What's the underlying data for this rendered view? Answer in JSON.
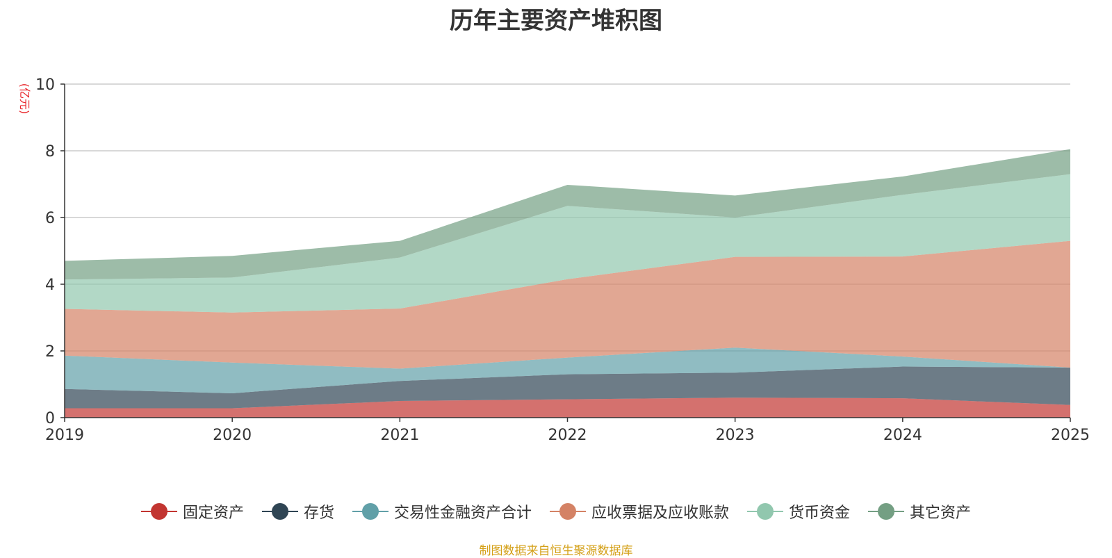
{
  "chart_data": {
    "type": "area",
    "stacked": true,
    "title": "历年主要资产堆积图",
    "ylabel": "(亿元)",
    "xlabel": "",
    "categories": [
      "2019",
      "2020",
      "2021",
      "2022",
      "2023",
      "2024",
      "2025"
    ],
    "ylim": [
      0,
      10
    ],
    "yticks": [
      0,
      2,
      4,
      6,
      8,
      10
    ],
    "grid": true,
    "legend_position": "bottom",
    "series": [
      {
        "name": "固定资产",
        "color": "#c23531",
        "values": [
          0.28,
          0.28,
          0.5,
          0.55,
          0.6,
          0.58,
          0.38
        ]
      },
      {
        "name": "存货",
        "color": "#2f4554",
        "values": [
          0.58,
          0.45,
          0.6,
          0.75,
          0.75,
          0.95,
          1.12
        ]
      },
      {
        "name": "交易性金融资产合计",
        "color": "#61a0a8",
        "values": [
          1.0,
          0.92,
          0.37,
          0.5,
          0.75,
          0.3,
          0.0
        ]
      },
      {
        "name": "应收票据及应收账款",
        "color": "#d48265",
        "values": [
          1.4,
          1.5,
          1.8,
          2.35,
          2.72,
          3.0,
          3.8
        ]
      },
      {
        "name": "货币资金",
        "color": "#91c7ae",
        "values": [
          0.88,
          1.05,
          1.53,
          2.2,
          1.18,
          1.85,
          2.0
        ]
      },
      {
        "name": "其它资产",
        "color": "#749f83",
        "values": [
          0.56,
          0.65,
          0.5,
          0.63,
          0.66,
          0.55,
          0.75
        ]
      }
    ]
  },
  "source_note": "制图数据来自恒生聚源数据库"
}
